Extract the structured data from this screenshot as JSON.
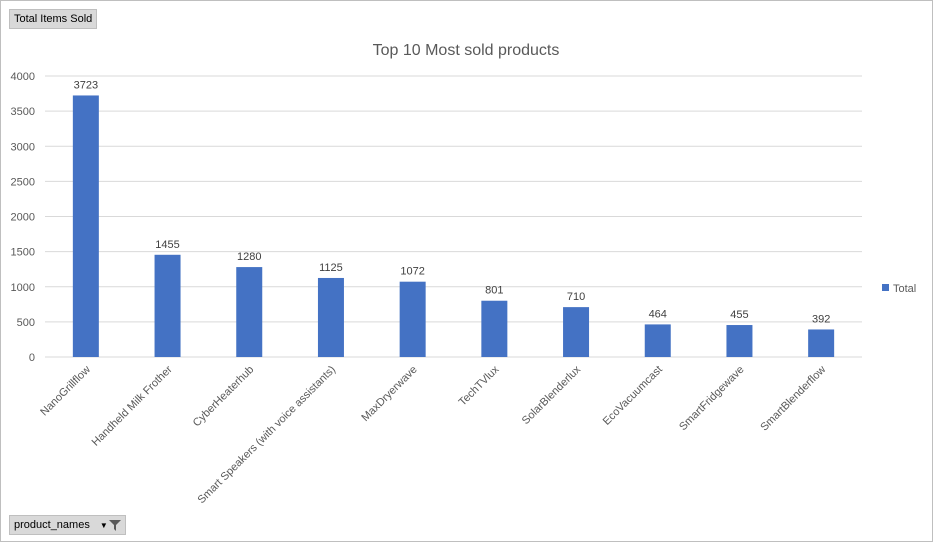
{
  "pivot": {
    "value_field": "Total Items Sold",
    "axis_field": "product_names",
    "filter_icon": "funnel-icon",
    "dropdown_icon": "dropdown-arrow-icon"
  },
  "colors": {
    "bar": "#4472c4",
    "grid": "#d9d9d9",
    "text": "#595959"
  },
  "chart_data": {
    "type": "bar",
    "title": "Top 10 Most sold products",
    "categories": [
      "NanoGrillflow",
      "Handheld Milk Frother",
      "CyberHeaterhub",
      "Smart Speakers (with voice assistants)",
      "MaxDryerwave",
      "TechTVlux",
      "SolarBlenderlux",
      "EcoVacuumcast",
      "SmartFridgewave",
      "SmartBlenderflow"
    ],
    "series": [
      {
        "name": "Total",
        "values": [
          3723,
          1455,
          1280,
          1125,
          1072,
          801,
          710,
          464,
          455,
          392
        ]
      }
    ],
    "ylim": [
      0,
      4000
    ],
    "yticks": [
      0,
      500,
      1000,
      1500,
      2000,
      2500,
      3000,
      3500,
      4000
    ],
    "grid": true,
    "legend": "right",
    "data_labels": true
  }
}
